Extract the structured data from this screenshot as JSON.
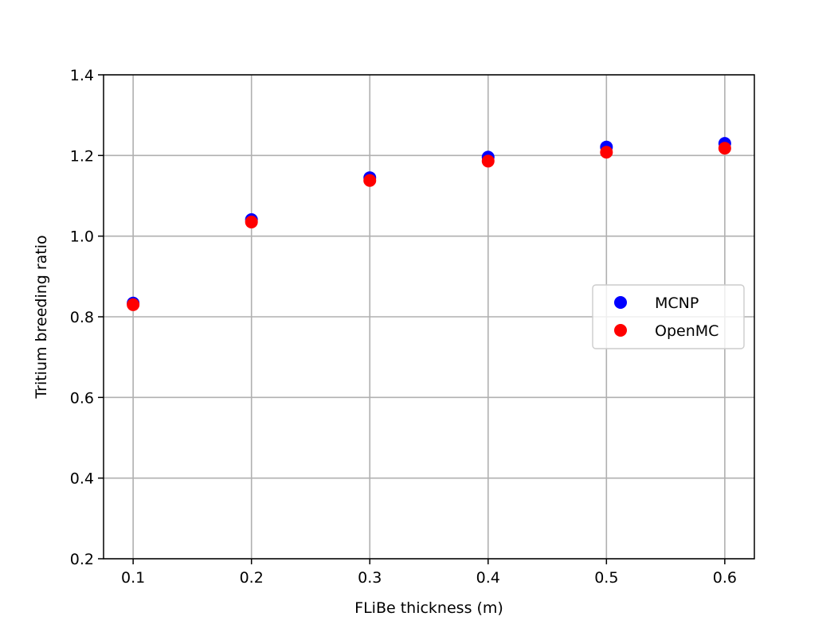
{
  "chart_data": {
    "type": "scatter",
    "xlabel": "FLiBe thickness (m)",
    "ylabel": "Tritium breeding ratio",
    "xlim": [
      0.075,
      0.625
    ],
    "ylim": [
      0.2,
      1.4
    ],
    "x_ticks": [
      "0.1",
      "0.2",
      "0.3",
      "0.4",
      "0.5",
      "0.6"
    ],
    "y_ticks": [
      "0.2",
      "0.4",
      "0.6",
      "0.8",
      "1.0",
      "1.2",
      "1.4"
    ],
    "grid": true,
    "legend_position": "center-right",
    "x": [
      0.1,
      0.2,
      0.3,
      0.4,
      0.5,
      0.6
    ],
    "series": [
      {
        "name": "MCNP",
        "color": "#0000ff",
        "values": [
          0.834,
          1.041,
          1.145,
          1.196,
          1.221,
          1.23
        ]
      },
      {
        "name": "OpenMC",
        "color": "#ff0000",
        "values": [
          0.83,
          1.035,
          1.138,
          1.186,
          1.208,
          1.218
        ]
      }
    ]
  }
}
